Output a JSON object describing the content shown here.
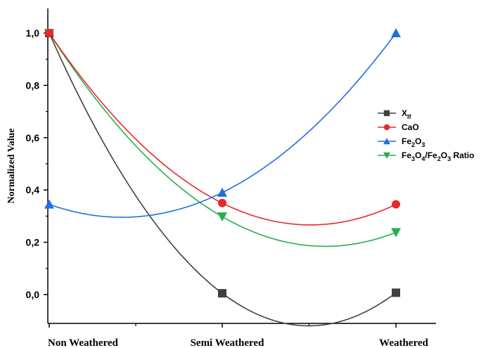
{
  "chart_data": {
    "type": "line",
    "title": "",
    "xlabel": "",
    "ylabel": "Normalized Value",
    "categories": [
      "Non Weathered",
      "Semi Weathered",
      "Weathered"
    ],
    "ylim": [
      -0.1,
      1.1
    ],
    "yticks": [
      "0,0",
      "0,2",
      "0,4",
      "0,6",
      "0,8",
      "1,0"
    ],
    "ytick_values": [
      0.0,
      0.2,
      0.4,
      0.6,
      0.8,
      1.0
    ],
    "grid": false,
    "smooth": true,
    "legend_position": "right",
    "series": [
      {
        "name": "Xlf",
        "name_main": "X",
        "name_sub": "lf",
        "color": "#404040",
        "marker": "square",
        "values": [
          1.0,
          0.005,
          0.007
        ]
      },
      {
        "name": "CaO",
        "name_main": "CaO",
        "color": "#e8282b",
        "marker": "circle",
        "values": [
          1.0,
          0.35,
          0.345
        ]
      },
      {
        "name": "Fe2O3",
        "name_main": "Fe",
        "name_sub": "2",
        "name_rest": "O",
        "name_sub2": "3",
        "color": "#1f6fe0",
        "marker": "triangle-up",
        "values": [
          0.345,
          0.39,
          1.0
        ]
      },
      {
        "name": "Fe3O4/Fe2O3 Ratio",
        "color": "#27ae4f",
        "marker": "triangle-down",
        "values": [
          1.0,
          0.298,
          0.238
        ]
      }
    ]
  }
}
